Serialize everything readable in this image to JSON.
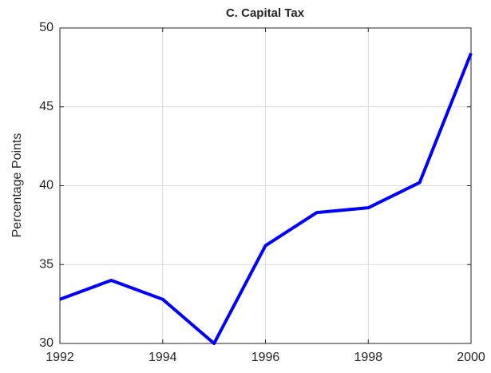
{
  "chart_data": {
    "type": "line",
    "title": "C. Capital Tax",
    "ylabel": "Percentage Points",
    "x": [
      1992,
      1993,
      1994,
      1995,
      1996,
      1997,
      1998,
      1999,
      2000
    ],
    "series": [
      {
        "name": "Capital Tax",
        "color": "#0000ff",
        "values": [
          32.8,
          34.0,
          32.8,
          30.0,
          36.2,
          38.3,
          38.6,
          40.2,
          48.4
        ]
      }
    ],
    "xlim": [
      1992,
      2000
    ],
    "xticks": [
      1992,
      1994,
      1996,
      1998,
      2000
    ],
    "ylim": [
      30,
      50
    ],
    "yticks": [
      30,
      35,
      40,
      45,
      50
    ],
    "grid": true
  }
}
